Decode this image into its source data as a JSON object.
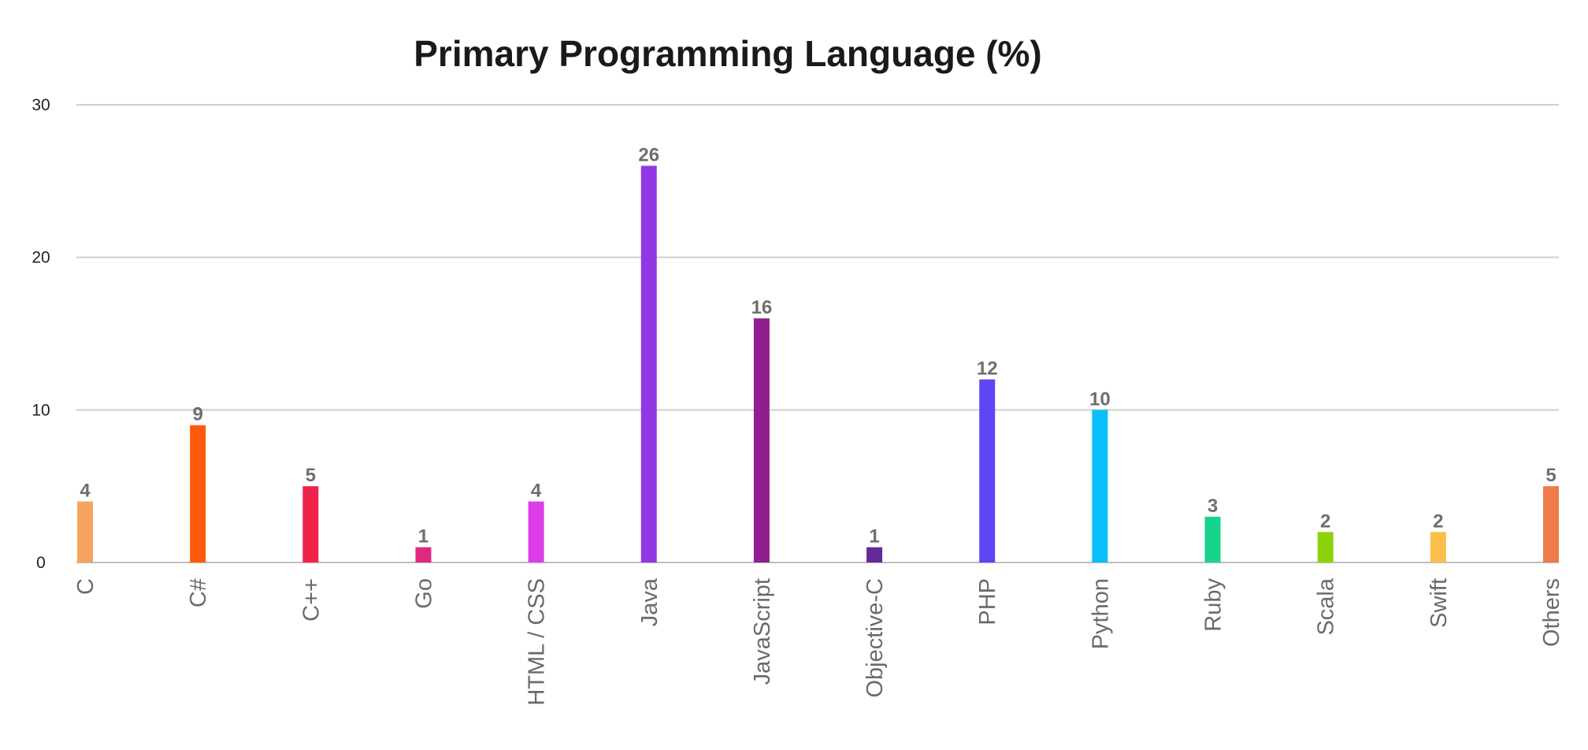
{
  "chart_data": {
    "type": "bar",
    "title": "Primary Programming Language (%)",
    "xlabel": "",
    "ylabel": "",
    "categories": [
      "C",
      "C#",
      "C++",
      "Go",
      "HTML / CSS",
      "Java",
      "JavaScript",
      "Objective-C",
      "PHP",
      "Python",
      "Ruby",
      "Scala",
      "Swift",
      "Others"
    ],
    "values": [
      4,
      9,
      5,
      1,
      4,
      26,
      16,
      1,
      12,
      10,
      3,
      2,
      2,
      5
    ],
    "colors": [
      "#f4a460",
      "#ff5a0a",
      "#f0224a",
      "#e02882",
      "#de3ee8",
      "#9238e2",
      "#8e1f8c",
      "#642899",
      "#5d46f2",
      "#0bbef7",
      "#17d38b",
      "#8cd20a",
      "#fbbf4c",
      "#ee7b4a"
    ],
    "yticks": [
      0,
      10,
      20,
      30
    ],
    "ylim": [
      0,
      30
    ],
    "grid": true,
    "legend": "none"
  }
}
